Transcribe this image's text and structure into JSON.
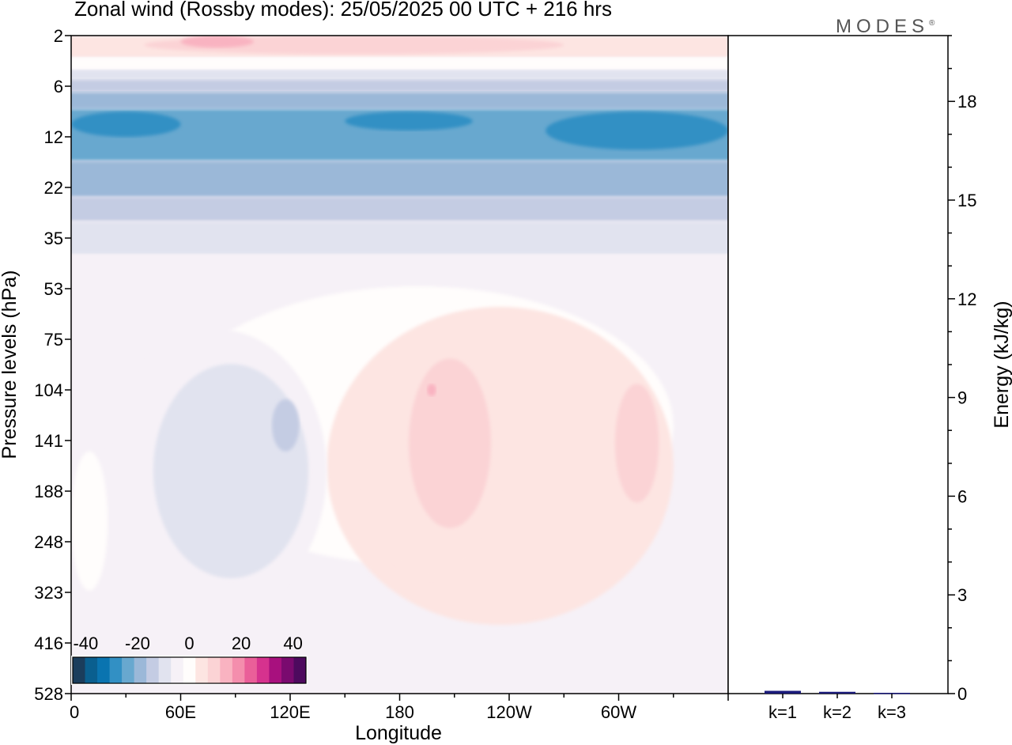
{
  "header": {
    "title": "Zonal wind (Rossby modes):  25/05/2025  00 UTC  + 216 hrs",
    "logo": "MODES",
    "logo_mark": "®"
  },
  "chart_data": [
    {
      "type": "heatmap",
      "title": "Zonal wind (Rossby modes):  25/05/2025  00 UTC  + 216 hrs",
      "xlabel": "Longitude",
      "ylabel": "Pressure levels (hPa)",
      "x_ticks": [
        "0",
        "60E",
        "120E",
        "180",
        "120W",
        "60W"
      ],
      "x_tick_positions_deg": [
        0,
        60,
        120,
        180,
        240,
        300
      ],
      "xlim_deg": [
        0,
        360
      ],
      "y_ticks": [
        "2",
        "6",
        "12",
        "22",
        "35",
        "53",
        "75",
        "104",
        "141",
        "188",
        "248",
        "323",
        "416",
        "528"
      ],
      "y_scale": "model levels (top 2 hPa, bottom 528 hPa)",
      "colorbar": {
        "labels": [
          "-40",
          "-20",
          "0",
          "20",
          "40"
        ],
        "label_values": [
          -40,
          -20,
          0,
          20,
          40
        ],
        "levels": [
          -45,
          -40,
          -35,
          -30,
          -25,
          -20,
          -15,
          -10,
          -5,
          0,
          5,
          10,
          15,
          20,
          25,
          30,
          35,
          40,
          45
        ],
        "colors": [
          "#1b3d5c",
          "#0a5f8f",
          "#0a74b0",
          "#3290c4",
          "#68a8cf",
          "#9bb8d8",
          "#c4cce3",
          "#e1e3ef",
          "#f6f1f7",
          "#fffdfc",
          "#fde5e2",
          "#fbd3d5",
          "#f9b3c1",
          "#f48ead",
          "#ea5f99",
          "#d6328e",
          "#a8107e",
          "#7a0a6f",
          "#4d0a5e"
        ],
        "location": "bottom-left inside plot"
      },
      "fields": [
        {
          "value_range": [
            -35,
            -25
          ],
          "description_level": "deep blue band",
          "lon": [
            0,
            360
          ],
          "pressure": [
            8,
            18
          ]
        },
        {
          "value_range": [
            -25,
            -15
          ],
          "lon": [
            0,
            360
          ],
          "pressure": [
            6,
            28
          ]
        },
        {
          "value_range": [
            -15,
            -5
          ],
          "lon": [
            0,
            360
          ],
          "pressure": [
            5,
            45
          ]
        },
        {
          "value_range": [
            5,
            15
          ],
          "lon": [
            40,
            260
          ],
          "pressure": [
            2,
            4
          ]
        },
        {
          "value_range": [
            -10,
            -5
          ],
          "lon": [
            50,
            130
          ],
          "pressure": [
            90,
            290
          ]
        },
        {
          "value_range": [
            5,
            15
          ],
          "lon": [
            160,
            230
          ],
          "pressure": [
            55,
            300
          ]
        },
        {
          "value_range": [
            5,
            15
          ],
          "lon": [
            290,
            320
          ],
          "pressure": [
            90,
            200
          ]
        }
      ]
    },
    {
      "type": "bar",
      "categories": [
        "k=1",
        "k=2",
        "k=3"
      ],
      "values": [
        0.06,
        0.03,
        0.0
      ],
      "ylabel": "Energy (kJ/kg)",
      "ylim": [
        0,
        20
      ],
      "y_ticks": [
        "0",
        "3",
        "6",
        "9",
        "12",
        "15",
        "18"
      ],
      "y_tick_values": [
        0,
        3,
        6,
        9,
        12,
        15,
        18
      ],
      "colors": [
        "#1a1a7a",
        "#1a1a7a",
        "#1a1a7a"
      ],
      "axis_side": "right"
    }
  ]
}
